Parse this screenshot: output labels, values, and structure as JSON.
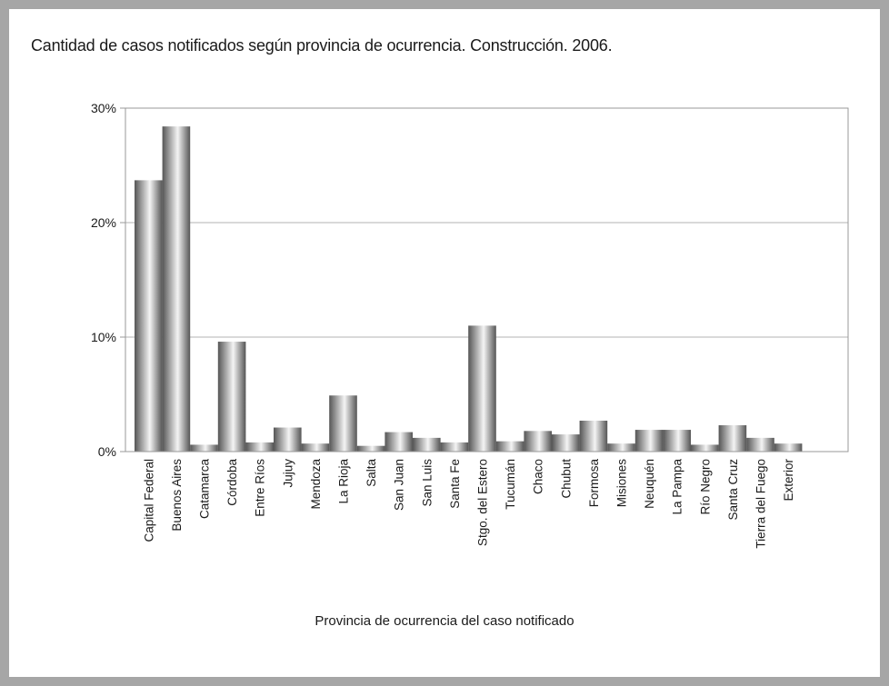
{
  "chart_data": {
    "type": "bar",
    "title": "Cantidad de casos notificados según provincia de ocurrencia. Construcción. 2006.",
    "xlabel": "Provincia de ocurrencia del caso notificado",
    "ylabel": "",
    "ylim": [
      0,
      30
    ],
    "yticks": [
      "0%",
      "10%",
      "20%",
      "30%"
    ],
    "grid": true,
    "categories": [
      "Capital Federal",
      "Buenos Aires",
      "Catamarca",
      "Córdoba",
      "Entre Ríos",
      "Jujuy",
      "Mendoza",
      "La Rioja",
      "Salta",
      "San Juan",
      "San Luis",
      "Santa Fe",
      "Stgo. del Estero",
      "Tucumán",
      "Chaco",
      "Chubut",
      "Formosa",
      "Misiones",
      "Neuquén",
      "La Pampa",
      "Río Negro",
      "Santa Cruz",
      "Tierra del Fuego",
      "Exterior"
    ],
    "values": [
      23.7,
      28.4,
      0.6,
      9.6,
      0.8,
      2.1,
      0.7,
      4.9,
      0.5,
      1.7,
      1.2,
      0.8,
      11.0,
      0.9,
      1.8,
      1.5,
      2.7,
      0.7,
      1.9,
      1.9,
      0.6,
      2.3,
      1.2,
      0.7
    ],
    "colors": {
      "bar_dark": "#555555",
      "bar_light": "#f4f4f4",
      "grid": "#b3b3b3",
      "axis": "#999999"
    }
  }
}
